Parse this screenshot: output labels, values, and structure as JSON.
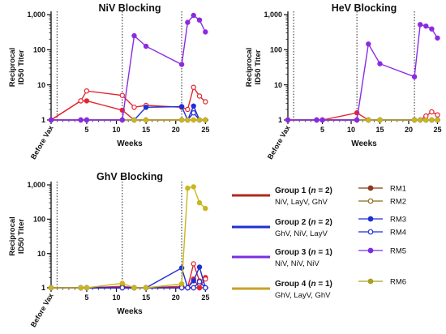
{
  "chart_data": [
    {
      "type": "line",
      "title": "NiV Blocking",
      "ylabel": [
        "Reciprocal",
        "ID50 Titer"
      ],
      "xlabel": "Weeks",
      "scale_y": "log",
      "ylim": [
        1,
        1000
      ],
      "xlim": [
        -1,
        25.5
      ],
      "x_ticks": [
        {
          "x": -1,
          "label": "Before Vax"
        },
        {
          "x": 5,
          "label": "5"
        },
        {
          "x": 10,
          "label": "10"
        },
        {
          "x": 15,
          "label": "15"
        },
        {
          "x": 20,
          "label": "20"
        },
        {
          "x": 25,
          "label": "25"
        }
      ],
      "y_ticks": [
        {
          "y": 1,
          "label": "1"
        },
        {
          "y": 10,
          "label": "10"
        },
        {
          "y": 100,
          "label": "100"
        },
        {
          "y": 1000,
          "label": "1,000"
        }
      ],
      "vaccination_weeks": [
        0,
        11,
        21
      ],
      "series": [
        {
          "name": "RM1",
          "x": [
            -1,
            4,
            5,
            11,
            13,
            15,
            21,
            22,
            23,
            24,
            25
          ],
          "y": [
            1,
            3.5,
            3.5,
            1.9,
            1,
            1,
            1,
            1,
            1,
            1,
            1
          ]
        },
        {
          "name": "RM2",
          "x": [
            -1,
            4,
            5,
            11,
            13,
            15,
            21,
            22,
            23,
            24,
            25
          ],
          "y": [
            1,
            3.5,
            6.7,
            5,
            2.3,
            2.6,
            2.3,
            2,
            8.5,
            4.8,
            3.3
          ]
        },
        {
          "name": "RM3",
          "x": [
            -1,
            4,
            5,
            11,
            13,
            15,
            21,
            22,
            23,
            24,
            25
          ],
          "y": [
            1,
            1,
            1,
            1,
            1,
            2.3,
            2.4,
            1,
            2.5,
            1,
            1
          ]
        },
        {
          "name": "RM4",
          "x": [
            -1,
            4,
            5,
            11,
            13,
            15,
            21,
            22,
            23,
            24,
            25
          ],
          "y": [
            1,
            1,
            1,
            1,
            1,
            1,
            1,
            1,
            1.6,
            1,
            1
          ]
        },
        {
          "name": "RM5",
          "x": [
            -1,
            4,
            5,
            11,
            13,
            15,
            21,
            22,
            23,
            24,
            25
          ],
          "y": [
            1,
            1,
            1,
            1,
            250,
            125,
            38,
            600,
            950,
            700,
            320
          ]
        },
        {
          "name": "RM6",
          "x": [
            -1,
            4,
            5,
            11,
            13,
            15,
            21,
            22,
            23,
            24,
            25
          ],
          "y": [
            1,
            1,
            1,
            1,
            1,
            1,
            1,
            1,
            1,
            1,
            1
          ]
        }
      ]
    },
    {
      "type": "line",
      "title": "HeV Blocking",
      "ylabel": [
        "Reciprocal",
        "ID50 Titer"
      ],
      "xlabel": "Weeks",
      "scale_y": "log",
      "ylim": [
        1,
        1000
      ],
      "xlim": [
        -1,
        25.5
      ],
      "x_ticks": [
        {
          "x": -1,
          "label": "Before Vax"
        },
        {
          "x": 5,
          "label": "5"
        },
        {
          "x": 10,
          "label": "10"
        },
        {
          "x": 15,
          "label": "15"
        },
        {
          "x": 20,
          "label": "20"
        },
        {
          "x": 25,
          "label": "25"
        }
      ],
      "y_ticks": [
        {
          "y": 1,
          "label": "1"
        },
        {
          "y": 10,
          "label": "10"
        },
        {
          "y": 100,
          "label": "100"
        },
        {
          "y": 1000,
          "label": "1,000"
        }
      ],
      "vaccination_weeks": [
        0,
        11,
        21
      ],
      "series": [
        {
          "name": "RM1",
          "x": [
            -1,
            4,
            5,
            11,
            13,
            15,
            21,
            22,
            23,
            24,
            25
          ],
          "y": [
            1,
            1,
            1,
            1.6,
            1,
            1,
            1,
            1,
            1,
            1,
            1
          ]
        },
        {
          "name": "RM2",
          "x": [
            -1,
            4,
            5,
            11,
            13,
            15,
            21,
            22,
            23,
            24,
            25
          ],
          "y": [
            1,
            1,
            1,
            1,
            1,
            1,
            1,
            1,
            1.3,
            1.7,
            1.4
          ]
        },
        {
          "name": "RM3",
          "x": [
            -1,
            4,
            5,
            11,
            13,
            15,
            21,
            22,
            23,
            24,
            25
          ],
          "y": [
            1,
            1,
            1,
            1,
            1,
            1,
            1,
            1,
            1,
            1,
            1
          ]
        },
        {
          "name": "RM4",
          "x": [
            -1,
            4,
            5,
            11,
            13,
            15,
            21,
            22,
            23,
            24,
            25
          ],
          "y": [
            1,
            1,
            1,
            1,
            1,
            1,
            1,
            1,
            1,
            1,
            1
          ]
        },
        {
          "name": "RM5",
          "x": [
            -1,
            4,
            5,
            11,
            13,
            15,
            21,
            22,
            23,
            24,
            25
          ],
          "y": [
            1,
            1,
            1,
            1,
            145,
            40,
            17,
            520,
            470,
            390,
            215
          ]
        },
        {
          "name": "RM6",
          "x": [
            -1,
            4,
            5,
            11,
            13,
            15,
            21,
            22,
            23,
            24,
            25
          ],
          "y": [
            1,
            1,
            1,
            1,
            1,
            1,
            1,
            1,
            1,
            1,
            1
          ]
        }
      ]
    },
    {
      "type": "line",
      "title": "GhV Blocking",
      "ylabel": [
        "Reciprocal",
        "ID50 Titer"
      ],
      "xlabel": "Weeks",
      "scale_y": "log",
      "ylim": [
        1,
        1000
      ],
      "xlim": [
        -1,
        25.5
      ],
      "x_ticks": [
        {
          "x": -1,
          "label": "Before Vax"
        },
        {
          "x": 5,
          "label": "5"
        },
        {
          "x": 10,
          "label": "10"
        },
        {
          "x": 15,
          "label": "15"
        },
        {
          "x": 20,
          "label": "20"
        },
        {
          "x": 25,
          "label": "25"
        }
      ],
      "y_ticks": [
        {
          "y": 1,
          "label": "1"
        },
        {
          "y": 10,
          "label": "10"
        },
        {
          "y": 100,
          "label": "100"
        },
        {
          "y": 1000,
          "label": "1,000"
        }
      ],
      "vaccination_weeks": [
        0,
        11,
        21
      ],
      "series": [
        {
          "name": "RM1",
          "x": [
            -1,
            4,
            5,
            11,
            13,
            15,
            21,
            22,
            23,
            24,
            25
          ],
          "y": [
            1,
            1,
            1,
            1.1,
            1,
            1,
            1.1,
            1,
            1.8,
            1,
            2
          ]
        },
        {
          "name": "RM2",
          "x": [
            -1,
            4,
            5,
            11,
            13,
            15,
            21,
            22,
            23,
            24,
            25
          ],
          "y": [
            1,
            1,
            1,
            1,
            1,
            1,
            1,
            1,
            5,
            1.6,
            1.8
          ]
        },
        {
          "name": "RM3",
          "x": [
            -1,
            4,
            5,
            11,
            13,
            15,
            21,
            22,
            23,
            24,
            25
          ],
          "y": [
            1,
            1,
            1,
            1,
            1,
            1,
            3.8,
            1,
            1.6,
            4,
            1
          ]
        },
        {
          "name": "RM4",
          "x": [
            -1,
            4,
            5,
            11,
            13,
            15,
            21,
            22,
            23,
            24,
            25
          ],
          "y": [
            1,
            1,
            1,
            1,
            1,
            1,
            1,
            1,
            1,
            1.5,
            1
          ]
        },
        {
          "name": "RM5",
          "x": [
            -1,
            4,
            5,
            11,
            13,
            15,
            21,
            22,
            23,
            24,
            25
          ],
          "y": [
            1,
            1,
            1,
            1,
            1,
            1,
            1,
            1,
            1,
            1,
            1
          ]
        },
        {
          "name": "RM6",
          "x": [
            -1,
            4,
            5,
            11,
            13,
            15,
            21,
            22,
            23,
            24,
            25
          ],
          "y": [
            1,
            1,
            1,
            1.35,
            1,
            1,
            1.3,
            800,
            880,
            300,
            205
          ]
        }
      ]
    }
  ],
  "legend": {
    "groups": [
      {
        "label": "Group 1 (",
        "n_italic": "n",
        "suffix": " = 2)",
        "subtitle": "NiV, LayV, GhV",
        "color": "#b0281e"
      },
      {
        "label": "Group 2 (",
        "n_italic": "n",
        "suffix": " = 2)",
        "subtitle": "GhV, NiV, LayV",
        "color": "#1f2fd6"
      },
      {
        "label": "Group 3 (",
        "n_italic": "n",
        "suffix": " = 1)",
        "subtitle": "NiV, NiV, NiV",
        "color": "#7a2ee0"
      },
      {
        "label": "Group 4 (",
        "n_italic": "n",
        "suffix": " = 1)",
        "subtitle": "GhV, LayV, GhV",
        "color": "#c9a227"
      }
    ],
    "animals": [
      {
        "name": "RM1",
        "color": "#8b3a1e",
        "hollow": false
      },
      {
        "name": "RM2",
        "color": "#8b6a1e",
        "hollow": true
      },
      {
        "name": "RM3",
        "color": "#1f2fd6",
        "hollow": false
      },
      {
        "name": "RM4",
        "color": "#1f2fd6",
        "hollow": true
      },
      {
        "name": "RM5",
        "color": "#7a2ee0",
        "hollow": false
      },
      {
        "name": "RM6",
        "color": "#a8a020",
        "hollow": false
      }
    ]
  },
  "series_styles": {
    "RM1": {
      "color": "#e3262d",
      "hollow": false
    },
    "RM2": {
      "color": "#e3262d",
      "hollow": true
    },
    "RM3": {
      "color": "#1f2fd6",
      "hollow": false
    },
    "RM4": {
      "color": "#1f2fd6",
      "hollow": true
    },
    "RM5": {
      "color": "#8a2be2",
      "hollow": false
    },
    "RM6": {
      "color": "#c9b61e",
      "hollow": false
    }
  }
}
